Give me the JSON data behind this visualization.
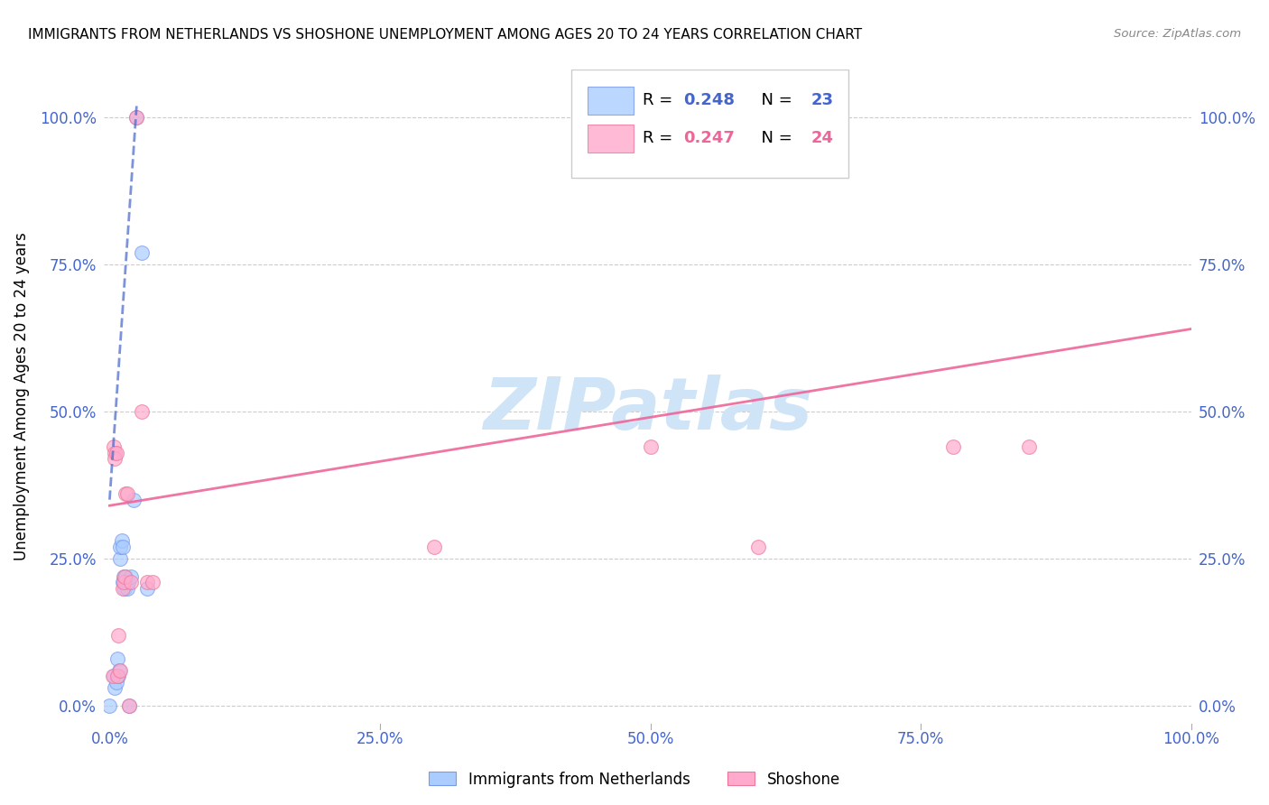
{
  "title": "IMMIGRANTS FROM NETHERLANDS VS SHOSHONE UNEMPLOYMENT AMONG AGES 20 TO 24 YEARS CORRELATION CHART",
  "source": "Source: ZipAtlas.com",
  "ylabel": "Unemployment Among Ages 20 to 24 years",
  "ytick_labels": [
    "0.0%",
    "25.0%",
    "50.0%",
    "75.0%",
    "100.0%"
  ],
  "ytick_values": [
    0.0,
    0.25,
    0.5,
    0.75,
    1.0
  ],
  "xtick_labels": [
    "0.0%",
    "25.0%",
    "50.0%",
    "75.0%",
    "100.0%"
  ],
  "xtick_values": [
    0.0,
    0.25,
    0.5,
    0.75,
    1.0
  ],
  "legend_label1": "Immigrants from Netherlands",
  "legend_label2": "Shoshone",
  "r1_label": "R = 0.248",
  "n1_label": "N = 23",
  "r2_label": "R = 0.247",
  "n2_label": "N = 24",
  "r1_val": "0.248",
  "n1_val": "23",
  "r2_val": "0.247",
  "n2_val": "24",
  "blue_color": "#aaccff",
  "blue_edge_color": "#7799ee",
  "pink_color": "#ffaacc",
  "pink_edge_color": "#ee7799",
  "blue_line_color": "#4466cc",
  "pink_line_color": "#ee6699",
  "tick_color": "#4466cc",
  "watermark_color": "#d0e4f7",
  "watermark": "ZIPatlas",
  "blue_scatter_x": [
    0.0,
    0.004,
    0.005,
    0.006,
    0.007,
    0.008,
    0.009,
    0.01,
    0.01,
    0.011,
    0.012,
    0.012,
    0.013,
    0.014,
    0.015,
    0.016,
    0.017,
    0.018,
    0.02,
    0.022,
    0.025,
    0.03,
    0.035
  ],
  "blue_scatter_y": [
    0.0,
    0.05,
    0.03,
    0.04,
    0.08,
    0.05,
    0.06,
    0.25,
    0.27,
    0.28,
    0.27,
    0.21,
    0.22,
    0.2,
    0.22,
    0.2,
    0.21,
    0.0,
    0.22,
    0.35,
    1.0,
    0.77,
    0.2
  ],
  "pink_scatter_x": [
    0.003,
    0.004,
    0.005,
    0.005,
    0.006,
    0.007,
    0.008,
    0.01,
    0.012,
    0.013,
    0.014,
    0.015,
    0.016,
    0.018,
    0.02,
    0.025,
    0.03,
    0.035,
    0.04,
    0.3,
    0.5,
    0.6,
    0.78,
    0.85
  ],
  "pink_scatter_y": [
    0.05,
    0.44,
    0.43,
    0.42,
    0.43,
    0.05,
    0.12,
    0.06,
    0.2,
    0.21,
    0.22,
    0.36,
    0.36,
    0.0,
    0.21,
    1.0,
    0.5,
    0.21,
    0.21,
    0.27,
    0.44,
    0.27,
    0.44,
    0.44
  ],
  "blue_trend_x": [
    0.0,
    0.025
  ],
  "blue_trend_y": [
    0.35,
    1.02
  ],
  "pink_trend_x": [
    0.0,
    1.0
  ],
  "pink_trend_y": [
    0.34,
    0.64
  ],
  "xlim": [
    -0.005,
    1.0
  ],
  "ylim": [
    -0.03,
    1.08
  ]
}
